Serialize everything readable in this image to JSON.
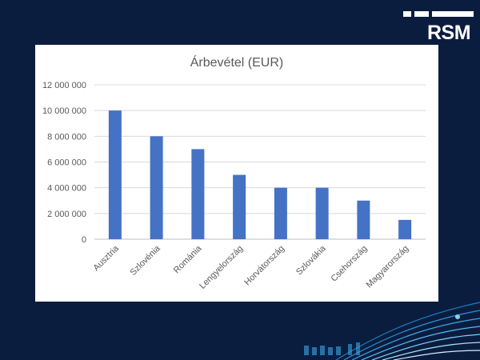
{
  "brand": {
    "logo_text": "RSM"
  },
  "colors": {
    "background": "#0b1d3f",
    "bar": "#4472c4",
    "gridline": "#d9d9d9"
  },
  "chart_data": {
    "type": "bar",
    "title": "Árbevétel (EUR)",
    "xlabel": "",
    "ylabel": "",
    "categories": [
      "Ausztria",
      "Szlovénia",
      "Románia",
      "Lengyelország",
      "Horvátország",
      "Szlovákia",
      "Csehország",
      "Magyarország"
    ],
    "values": [
      10000000,
      8000000,
      7000000,
      5000000,
      4000000,
      4000000,
      3000000,
      1500000
    ],
    "ylim": [
      0,
      12000000
    ],
    "yticks": [
      0,
      2000000,
      4000000,
      6000000,
      8000000,
      10000000,
      12000000
    ],
    "ytick_labels": [
      "0",
      "2 000 000",
      "4 000 000",
      "6 000 000",
      "8 000 000",
      "10 000 000",
      "12 000 000"
    ],
    "grid": true,
    "legend": "none"
  }
}
